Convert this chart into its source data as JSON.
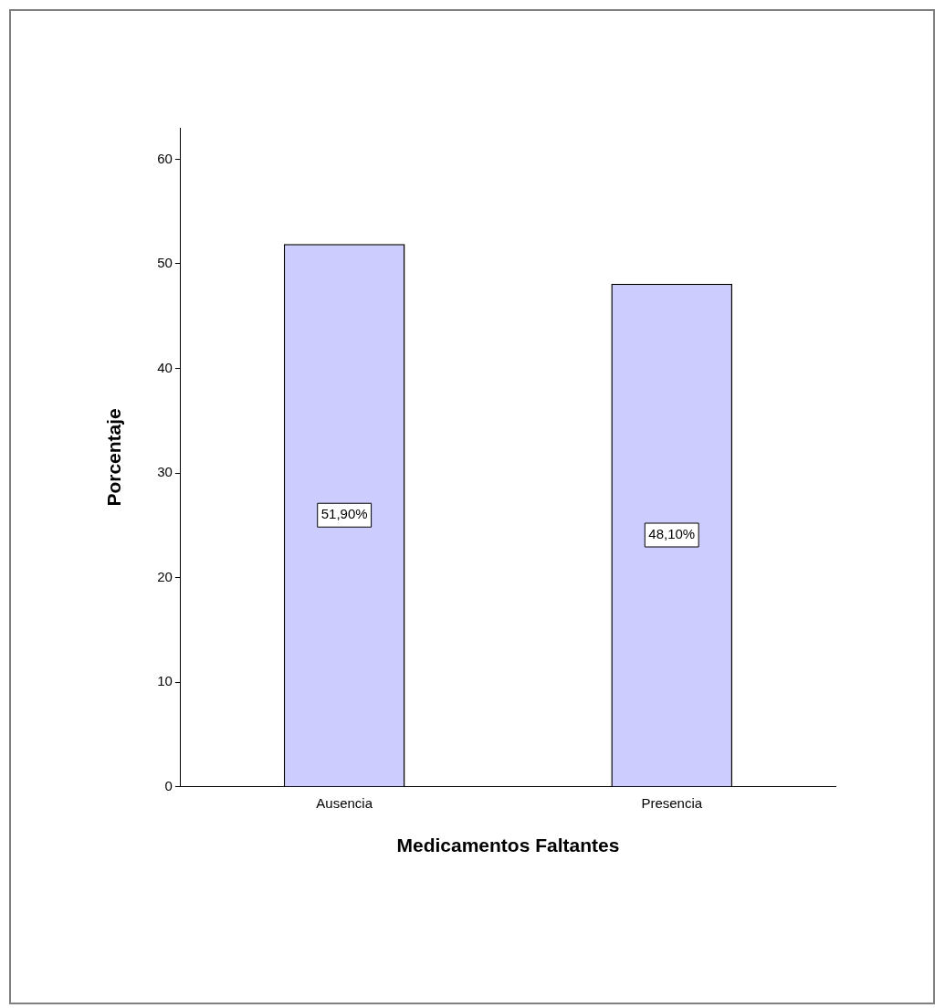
{
  "chart_data": {
    "type": "bar",
    "xlabel": "Medicamentos Faltantes",
    "ylabel": "Porcentaje",
    "categories": [
      "Ausencia",
      "Presencia"
    ],
    "values": [
      51.9,
      48.1
    ],
    "color": "#ccccff",
    "value_labels": [
      "51,90%",
      "48,10%"
    ],
    "ylim": [
      0,
      63
    ],
    "yticks": [
      0,
      10,
      20,
      30,
      40,
      50,
      60
    ]
  }
}
